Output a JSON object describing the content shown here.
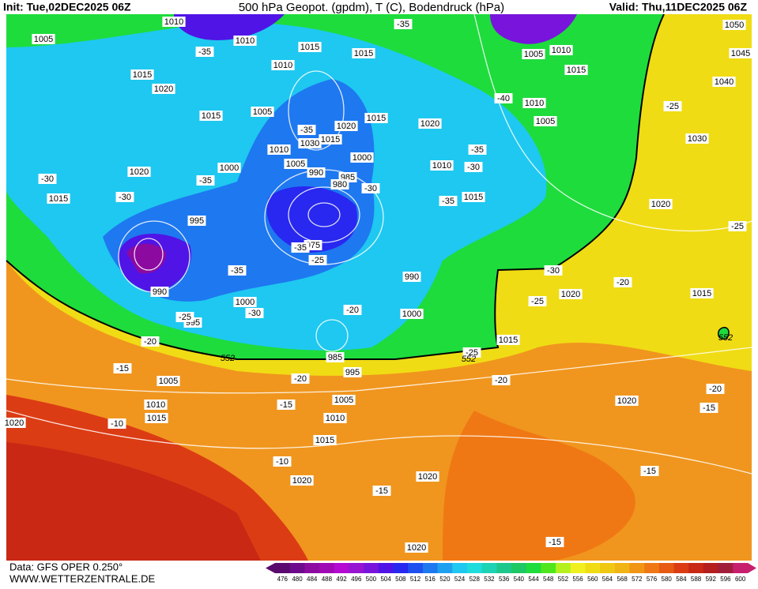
{
  "header": {
    "init": "Init: Tue,02DEC2025 06Z",
    "title": "500 hPa Geopot. (gpdm), T (C), Bodendruck (hPa)",
    "valid": "Valid: Thu,11DEC2025 06Z"
  },
  "footer": {
    "source": "Data: GFS OPER 0.250°",
    "website": "WWW.WETTERZENTRALE.DE"
  },
  "map": {
    "pressure_labels": [
      "1010",
      "1010",
      "1015",
      "1015",
      "1005",
      "1015",
      "1020",
      "1015",
      "1005",
      "1010",
      "1020",
      "1015",
      "1015",
      "1030",
      "1010",
      "1005",
      "1000",
      "990",
      "985",
      "980",
      "1000",
      "1020",
      "1015",
      "995",
      "975",
      "990",
      "1000",
      "995",
      "990",
      "1000",
      "985",
      "995",
      "1005",
      "1010",
      "1015",
      "1005",
      "1010",
      "1015",
      "1020",
      "1020",
      "1020",
      "1020",
      "1050",
      "1045",
      "1040",
      "1030",
      "1020",
      "1015",
      "1020",
      "1020",
      "1015",
      "1010",
      "1015",
      "1020",
      "1005",
      "1010",
      "1015",
      "1005",
      "1010"
    ],
    "temperature_labels": [
      "-35",
      "-35",
      "-40",
      "-35",
      "-35",
      "-30",
      "-35",
      "-30",
      "-30",
      "-30",
      "-35",
      "-25",
      "-25",
      "-35",
      "-35",
      "-25",
      "-30",
      "-30",
      "-20",
      "-25",
      "-25",
      "-20",
      "-20",
      "-15",
      "-20",
      "-20",
      "-15",
      "-10",
      "-10",
      "-15",
      "-15",
      "-15",
      "-20",
      "-15",
      "-25"
    ],
    "height_labels": [
      "552",
      "552",
      "552"
    ]
  },
  "colorbar": {
    "values": [
      476,
      480,
      484,
      488,
      492,
      496,
      500,
      504,
      508,
      512,
      516,
      520,
      524,
      528,
      532,
      536,
      540,
      544,
      548,
      552,
      556,
      560,
      564,
      568,
      572,
      576,
      580,
      584,
      588,
      592,
      596,
      600
    ],
    "colors": [
      "#5a0a6e",
      "#6e0a8c",
      "#8c0aa0",
      "#a00ab4",
      "#b40ad2",
      "#9614d2",
      "#7814dc",
      "#5014e6",
      "#2828f0",
      "#1e50f0",
      "#1e78f0",
      "#1ea0f0",
      "#1ec8f0",
      "#1edcdc",
      "#1ed2b4",
      "#1ec88c",
      "#1ec864",
      "#1edc3c",
      "#50e61e",
      "#b4f01e",
      "#f0f01e",
      "#f0dc14",
      "#f0c814",
      "#f0b414",
      "#f09614",
      "#f07814",
      "#e65a14",
      "#dc3c14",
      "#c82814",
      "#b41e1e",
      "#a01e3c",
      "#c81e6e"
    ]
  }
}
